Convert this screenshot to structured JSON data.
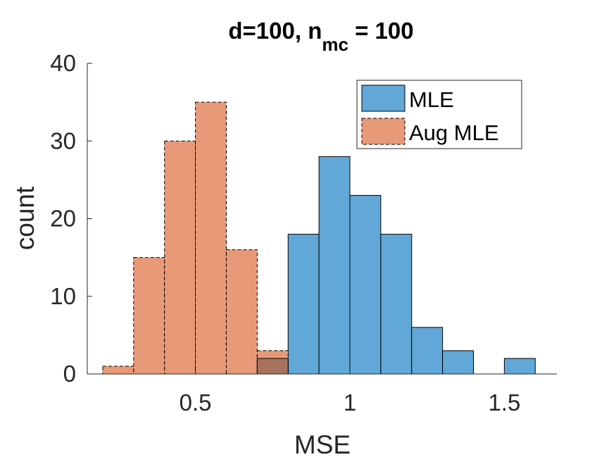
{
  "chart_data": {
    "type": "bar",
    "subtype": "histogram",
    "title": {
      "main": "d=100, n",
      "subscript": "mc",
      "suffix": " = 100"
    },
    "xlabel": "MSE",
    "ylabel": "count",
    "xlim": [
      0.15,
      1.67
    ],
    "ylim": [
      0,
      40
    ],
    "xticks": [
      0.5,
      1,
      1.5
    ],
    "xtick_labels": [
      "0.5",
      "1",
      "1.5"
    ],
    "yticks": [
      0,
      10,
      20,
      30,
      40
    ],
    "ytick_labels": [
      "0",
      "10",
      "20",
      "30",
      "40"
    ],
    "grid": false,
    "legend_position": "top-right",
    "series": [
      {
        "name": "MLE",
        "color": "#61a8d9",
        "edge": "solid",
        "bins": [
          {
            "x0": 0.7,
            "x1": 0.8,
            "count": 2
          },
          {
            "x0": 0.8,
            "x1": 0.9,
            "count": 18
          },
          {
            "x0": 0.9,
            "x1": 1.0,
            "count": 28
          },
          {
            "x0": 1.0,
            "x1": 1.1,
            "count": 23
          },
          {
            "x0": 1.1,
            "x1": 1.2,
            "count": 18
          },
          {
            "x0": 1.2,
            "x1": 1.3,
            "count": 6
          },
          {
            "x0": 1.3,
            "x1": 1.4,
            "count": 3
          },
          {
            "x0": 1.4,
            "x1": 1.5,
            "count": 0
          },
          {
            "x0": 1.5,
            "x1": 1.6,
            "count": 2
          }
        ]
      },
      {
        "name": "Aug MLE",
        "color": "#e89a78",
        "edge": "dashed",
        "bins": [
          {
            "x0": 0.2,
            "x1": 0.3,
            "count": 1
          },
          {
            "x0": 0.3,
            "x1": 0.4,
            "count": 15
          },
          {
            "x0": 0.4,
            "x1": 0.5,
            "count": 30
          },
          {
            "x0": 0.5,
            "x1": 0.6,
            "count": 35
          },
          {
            "x0": 0.6,
            "x1": 0.7,
            "count": 16
          },
          {
            "x0": 0.7,
            "x1": 0.8,
            "count": 3
          }
        ]
      }
    ],
    "overlap_color": "#a8735e"
  }
}
